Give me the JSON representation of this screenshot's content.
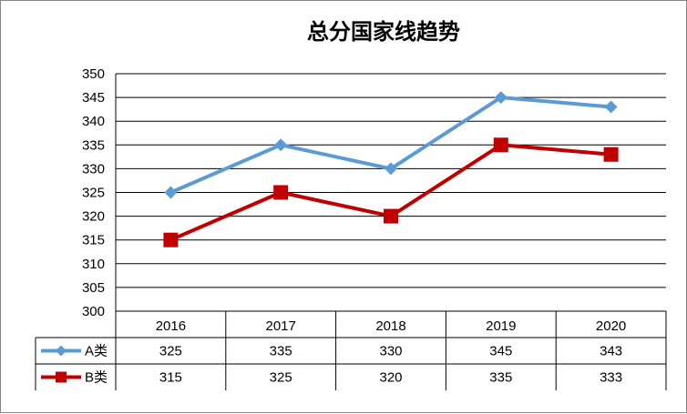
{
  "chart_data": {
    "type": "line",
    "title": "总分国家线趋势",
    "categories": [
      "2016",
      "2017",
      "2018",
      "2019",
      "2020"
    ],
    "series": [
      {
        "name": "A类",
        "values": [
          325,
          335,
          330,
          345,
          343
        ],
        "color": "#5B9BD5",
        "marker": "diamond"
      },
      {
        "name": "B类",
        "values": [
          315,
          325,
          320,
          335,
          333
        ],
        "color": "#C00000",
        "marker": "square"
      }
    ],
    "ylim": [
      300,
      350
    ],
    "yticks": [
      "300",
      "305",
      "310",
      "315",
      "320",
      "325",
      "330",
      "335",
      "340",
      "345",
      "350"
    ],
    "grid": true,
    "legend": "data-table"
  }
}
